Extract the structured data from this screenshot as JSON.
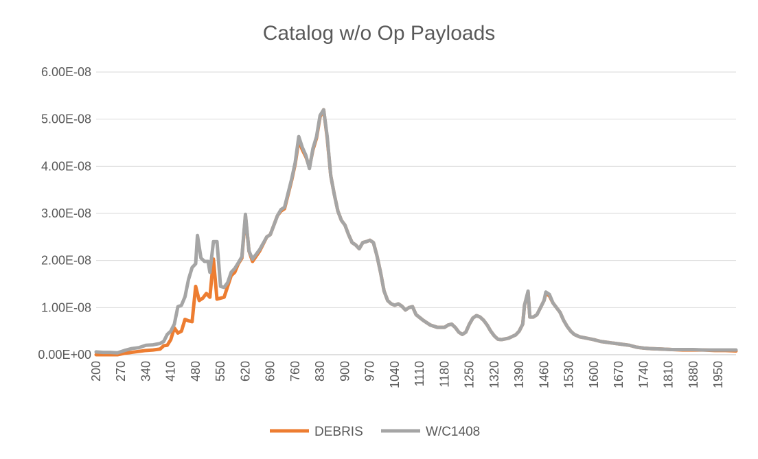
{
  "chart_data": {
    "type": "line",
    "title": "Catalog w/o Op Payloads",
    "xlabel": "",
    "ylabel": "",
    "x_tick_labels": [
      "200",
      "270",
      "340",
      "410",
      "480",
      "550",
      "620",
      "690",
      "760",
      "830",
      "900",
      "970",
      "1040",
      "1110",
      "1180",
      "1250",
      "1320",
      "1390",
      "1460",
      "1530",
      "1600",
      "1670",
      "1740",
      "1810",
      "1880",
      "1950"
    ],
    "y_tick_labels": [
      "0.00E+00",
      "1.00E-08",
      "2.00E-08",
      "3.00E-08",
      "4.00E-08",
      "5.00E-08",
      "6.00E-08"
    ],
    "xlim": [
      200,
      2000
    ],
    "ylim": [
      0,
      6e-08
    ],
    "grid": true,
    "legend_position": "bottom",
    "colors": {
      "DEBRIS": "#ed7d31",
      "W/C1408": "#a5a5a5"
    },
    "series": [
      {
        "name": "DEBRIS",
        "points": [
          [
            200,
            0.0
          ],
          [
            220,
            0.0
          ],
          [
            240,
            0.0
          ],
          [
            260,
            0.0
          ],
          [
            280,
            3e-10
          ],
          [
            300,
            5e-10
          ],
          [
            320,
            7e-10
          ],
          [
            340,
            9e-10
          ],
          [
            360,
            1e-09
          ],
          [
            380,
            1.2e-09
          ],
          [
            390,
            1.9e-09
          ],
          [
            400,
            2e-09
          ],
          [
            410,
            3.2e-09
          ],
          [
            420,
            5.7e-09
          ],
          [
            430,
            4.6e-09
          ],
          [
            440,
            5e-09
          ],
          [
            450,
            7.5e-09
          ],
          [
            460,
            7.2e-09
          ],
          [
            470,
            7e-09
          ],
          [
            480,
            1.45e-08
          ],
          [
            490,
            1.15e-08
          ],
          [
            500,
            1.2e-08
          ],
          [
            510,
            1.3e-08
          ],
          [
            520,
            1.22e-08
          ],
          [
            530,
            2.03e-08
          ],
          [
            540,
            1.18e-08
          ],
          [
            550,
            1.2e-08
          ],
          [
            560,
            1.22e-08
          ],
          [
            570,
            1.45e-08
          ],
          [
            580,
            1.68e-08
          ],
          [
            590,
            1.75e-08
          ],
          [
            600,
            1.93e-08
          ],
          [
            610,
            2.05e-08
          ],
          [
            620,
            2.95e-08
          ],
          [
            630,
            2.2e-08
          ],
          [
            640,
            1.98e-08
          ],
          [
            660,
            2.2e-08
          ],
          [
            680,
            2.5e-08
          ],
          [
            690,
            2.55e-08
          ],
          [
            700,
            2.75e-08
          ],
          [
            710,
            2.95e-08
          ],
          [
            720,
            3.05e-08
          ],
          [
            730,
            3.1e-08
          ],
          [
            750,
            3.7e-08
          ],
          [
            760,
            4.05e-08
          ],
          [
            770,
            4.55e-08
          ],
          [
            780,
            4.35e-08
          ],
          [
            790,
            4.2e-08
          ],
          [
            800,
            3.98e-08
          ],
          [
            810,
            4.35e-08
          ],
          [
            820,
            4.6e-08
          ],
          [
            830,
            5.05e-08
          ],
          [
            840,
            5.2e-08
          ],
          [
            850,
            4.6e-08
          ],
          [
            860,
            3.8e-08
          ],
          [
            870,
            3.4e-08
          ],
          [
            880,
            3.05e-08
          ],
          [
            890,
            2.85e-08
          ],
          [
            900,
            2.75e-08
          ],
          [
            910,
            2.55e-08
          ],
          [
            920,
            2.38e-08
          ],
          [
            930,
            2.33e-08
          ],
          [
            940,
            2.25e-08
          ],
          [
            950,
            2.38e-08
          ],
          [
            960,
            2.4e-08
          ],
          [
            970,
            2.43e-08
          ],
          [
            980,
            2.38e-08
          ],
          [
            990,
            2.1e-08
          ],
          [
            1000,
            1.75e-08
          ],
          [
            1010,
            1.35e-08
          ],
          [
            1020,
            1.15e-08
          ],
          [
            1030,
            1.08e-08
          ],
          [
            1040,
            1.05e-08
          ],
          [
            1050,
            1.08e-08
          ],
          [
            1060,
            1.03e-08
          ],
          [
            1070,
            9.5e-09
          ],
          [
            1080,
            1e-08
          ],
          [
            1090,
            1.02e-08
          ],
          [
            1100,
            8.5e-09
          ],
          [
            1120,
            7.3e-09
          ],
          [
            1140,
            6.3e-09
          ],
          [
            1160,
            5.8e-09
          ],
          [
            1180,
            5.8e-09
          ],
          [
            1190,
            6.3e-09
          ],
          [
            1200,
            6.5e-09
          ],
          [
            1210,
            5.8e-09
          ],
          [
            1220,
            4.8e-09
          ],
          [
            1230,
            4.3e-09
          ],
          [
            1240,
            4.8e-09
          ],
          [
            1250,
            6.5e-09
          ],
          [
            1260,
            7.8e-09
          ],
          [
            1270,
            8.3e-09
          ],
          [
            1280,
            8e-09
          ],
          [
            1290,
            7.3e-09
          ],
          [
            1300,
            6.3e-09
          ],
          [
            1310,
            5e-09
          ],
          [
            1320,
            4e-09
          ],
          [
            1330,
            3.3e-09
          ],
          [
            1340,
            3.2e-09
          ],
          [
            1360,
            3.5e-09
          ],
          [
            1380,
            4.2e-09
          ],
          [
            1390,
            5e-09
          ],
          [
            1400,
            6.5e-09
          ],
          [
            1405,
            1.05e-08
          ],
          [
            1415,
            1.33e-08
          ],
          [
            1420,
            8e-09
          ],
          [
            1430,
            8e-09
          ],
          [
            1440,
            8.5e-09
          ],
          [
            1450,
            1e-08
          ],
          [
            1460,
            1.15e-08
          ],
          [
            1465,
            1.3e-08
          ],
          [
            1475,
            1.25e-08
          ],
          [
            1485,
            1.1e-08
          ],
          [
            1495,
            1e-08
          ],
          [
            1505,
            9e-09
          ],
          [
            1515,
            7.3e-09
          ],
          [
            1525,
            6e-09
          ],
          [
            1535,
            5e-09
          ],
          [
            1545,
            4.3e-09
          ],
          [
            1560,
            3.8e-09
          ],
          [
            1580,
            3.5e-09
          ],
          [
            1600,
            3.2e-09
          ],
          [
            1620,
            2.8e-09
          ],
          [
            1640,
            2.6e-09
          ],
          [
            1660,
            2.4e-09
          ],
          [
            1680,
            2.2e-09
          ],
          [
            1700,
            2e-09
          ],
          [
            1720,
            1.6e-09
          ],
          [
            1740,
            1.4e-09
          ],
          [
            1760,
            1.3e-09
          ],
          [
            1790,
            1.2e-09
          ],
          [
            1820,
            1.1e-09
          ],
          [
            1850,
            1e-09
          ],
          [
            1880,
            1e-09
          ],
          [
            1910,
            1e-09
          ],
          [
            1940,
            9e-10
          ],
          [
            1970,
            9e-10
          ],
          [
            2000,
            8e-10
          ]
        ]
      },
      {
        "name": "W/C1408",
        "points": [
          [
            200,
            6e-10
          ],
          [
            220,
            5e-10
          ],
          [
            240,
            5e-10
          ],
          [
            260,
            4e-10
          ],
          [
            280,
            9e-10
          ],
          [
            300,
            1.3e-09
          ],
          [
            320,
            1.5e-09
          ],
          [
            340,
            2e-09
          ],
          [
            360,
            2.1e-09
          ],
          [
            380,
            2.4e-09
          ],
          [
            390,
            2.8e-09
          ],
          [
            400,
            4.3e-09
          ],
          [
            410,
            5e-09
          ],
          [
            420,
            6.5e-09
          ],
          [
            430,
            1.02e-08
          ],
          [
            440,
            1.05e-08
          ],
          [
            450,
            1.23e-08
          ],
          [
            460,
            1.6e-08
          ],
          [
            470,
            1.85e-08
          ],
          [
            480,
            1.93e-08
          ],
          [
            485,
            2.53e-08
          ],
          [
            495,
            2.05e-08
          ],
          [
            505,
            1.98e-08
          ],
          [
            515,
            1.98e-08
          ],
          [
            520,
            1.75e-08
          ],
          [
            530,
            2.4e-08
          ],
          [
            540,
            2.4e-08
          ],
          [
            550,
            1.45e-08
          ],
          [
            560,
            1.43e-08
          ],
          [
            570,
            1.53e-08
          ],
          [
            580,
            1.75e-08
          ],
          [
            590,
            1.83e-08
          ],
          [
            600,
            1.95e-08
          ],
          [
            610,
            2.08e-08
          ],
          [
            620,
            2.98e-08
          ],
          [
            630,
            2.2e-08
          ],
          [
            640,
            2.03e-08
          ],
          [
            660,
            2.23e-08
          ],
          [
            680,
            2.5e-08
          ],
          [
            690,
            2.55e-08
          ],
          [
            700,
            2.75e-08
          ],
          [
            710,
            2.95e-08
          ],
          [
            720,
            3.08e-08
          ],
          [
            730,
            3.13e-08
          ],
          [
            750,
            3.73e-08
          ],
          [
            760,
            4.08e-08
          ],
          [
            770,
            4.63e-08
          ],
          [
            780,
            4.4e-08
          ],
          [
            790,
            4.23e-08
          ],
          [
            800,
            3.95e-08
          ],
          [
            810,
            4.38e-08
          ],
          [
            820,
            4.63e-08
          ],
          [
            830,
            5.08e-08
          ],
          [
            840,
            5.2e-08
          ],
          [
            850,
            4.63e-08
          ],
          [
            860,
            3.8e-08
          ],
          [
            870,
            3.4e-08
          ],
          [
            880,
            3.05e-08
          ],
          [
            890,
            2.85e-08
          ],
          [
            900,
            2.75e-08
          ],
          [
            910,
            2.55e-08
          ],
          [
            920,
            2.38e-08
          ],
          [
            930,
            2.33e-08
          ],
          [
            940,
            2.25e-08
          ],
          [
            950,
            2.38e-08
          ],
          [
            960,
            2.4e-08
          ],
          [
            970,
            2.43e-08
          ],
          [
            980,
            2.38e-08
          ],
          [
            990,
            2.1e-08
          ],
          [
            1000,
            1.75e-08
          ],
          [
            1010,
            1.35e-08
          ],
          [
            1020,
            1.15e-08
          ],
          [
            1030,
            1.08e-08
          ],
          [
            1040,
            1.05e-08
          ],
          [
            1050,
            1.08e-08
          ],
          [
            1060,
            1.03e-08
          ],
          [
            1070,
            9.5e-09
          ],
          [
            1080,
            1e-08
          ],
          [
            1090,
            1.02e-08
          ],
          [
            1100,
            8.5e-09
          ],
          [
            1120,
            7.3e-09
          ],
          [
            1140,
            6.3e-09
          ],
          [
            1160,
            5.8e-09
          ],
          [
            1180,
            5.8e-09
          ],
          [
            1190,
            6.3e-09
          ],
          [
            1200,
            6.5e-09
          ],
          [
            1210,
            5.8e-09
          ],
          [
            1220,
            4.8e-09
          ],
          [
            1230,
            4.3e-09
          ],
          [
            1240,
            4.8e-09
          ],
          [
            1250,
            6.5e-09
          ],
          [
            1260,
            7.8e-09
          ],
          [
            1270,
            8.3e-09
          ],
          [
            1280,
            8e-09
          ],
          [
            1290,
            7.3e-09
          ],
          [
            1300,
            6.3e-09
          ],
          [
            1310,
            5e-09
          ],
          [
            1320,
            4e-09
          ],
          [
            1330,
            3.3e-09
          ],
          [
            1340,
            3.2e-09
          ],
          [
            1360,
            3.5e-09
          ],
          [
            1380,
            4.2e-09
          ],
          [
            1390,
            5e-09
          ],
          [
            1400,
            6.5e-09
          ],
          [
            1405,
            1.05e-08
          ],
          [
            1415,
            1.35e-08
          ],
          [
            1420,
            8e-09
          ],
          [
            1430,
            8e-09
          ],
          [
            1440,
            8.5e-09
          ],
          [
            1450,
            1e-08
          ],
          [
            1460,
            1.15e-08
          ],
          [
            1465,
            1.33e-08
          ],
          [
            1475,
            1.28e-08
          ],
          [
            1485,
            1.1e-08
          ],
          [
            1495,
            1e-08
          ],
          [
            1505,
            9e-09
          ],
          [
            1515,
            7.3e-09
          ],
          [
            1525,
            6e-09
          ],
          [
            1535,
            5e-09
          ],
          [
            1545,
            4.3e-09
          ],
          [
            1560,
            3.8e-09
          ],
          [
            1580,
            3.5e-09
          ],
          [
            1600,
            3.2e-09
          ],
          [
            1620,
            2.8e-09
          ],
          [
            1640,
            2.6e-09
          ],
          [
            1660,
            2.4e-09
          ],
          [
            1680,
            2.2e-09
          ],
          [
            1700,
            2e-09
          ],
          [
            1720,
            1.6e-09
          ],
          [
            1740,
            1.4e-09
          ],
          [
            1760,
            1.3e-09
          ],
          [
            1790,
            1.2e-09
          ],
          [
            1820,
            1.1e-09
          ],
          [
            1850,
            1.1e-09
          ],
          [
            1880,
            1.1e-09
          ],
          [
            1910,
            1e-09
          ],
          [
            1940,
            1e-09
          ],
          [
            1970,
            1e-09
          ],
          [
            2000,
            1e-09
          ]
        ]
      }
    ]
  }
}
